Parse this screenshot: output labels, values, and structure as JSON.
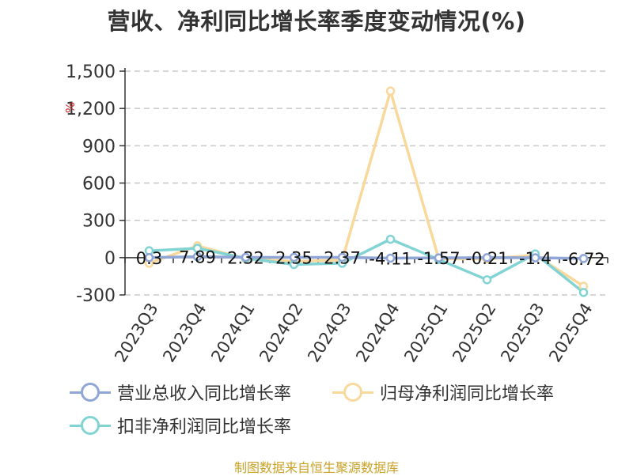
{
  "chart_data": {
    "type": "line",
    "title": "营收、净利同比增长率季度变动情况(%)",
    "ylabel": "%",
    "ylim": [
      -300,
      1500
    ],
    "yticks": [
      "1,500",
      "1,200",
      "900",
      "600",
      "300",
      "0",
      "-300"
    ],
    "ytick_values": [
      1500,
      1200,
      900,
      600,
      300,
      0,
      -300
    ],
    "grid": true,
    "legend_position": "bottom-left",
    "categories": [
      "2023Q3",
      "2023Q4",
      "2024Q1",
      "2024Q2",
      "2024Q3",
      "2024Q4",
      "2025Q1",
      "2025Q2",
      "2025Q3",
      "2025Q4"
    ],
    "series": [
      {
        "name": "营业总收入同比增长率",
        "color": "#8fa6d6",
        "values": [
          0.3,
          7.89,
          2.32,
          2.35,
          2.37,
          -4.11,
          -1.57,
          -0.21,
          -1.4,
          -6.72
        ],
        "labels": [
          "0.3",
          "7.89",
          "2.32",
          "2.35",
          "2.37",
          "-4.11",
          "-1.57",
          "-0.21",
          "-1.4",
          "-6.72"
        ]
      },
      {
        "name": "归母净利润同比增长率",
        "color": "#f9d99b",
        "values": [
          -45,
          95,
          -10,
          -30,
          -20,
          1340,
          -10,
          -10,
          20,
          -230
        ]
      },
      {
        "name": "扣非净利润同比增长率",
        "color": "#82d4d4",
        "values": [
          55,
          75,
          -5,
          -55,
          -45,
          148,
          -15,
          -178,
          30,
          -280
        ]
      }
    ]
  },
  "source_text": "制图数据来自恒生聚源数据库"
}
